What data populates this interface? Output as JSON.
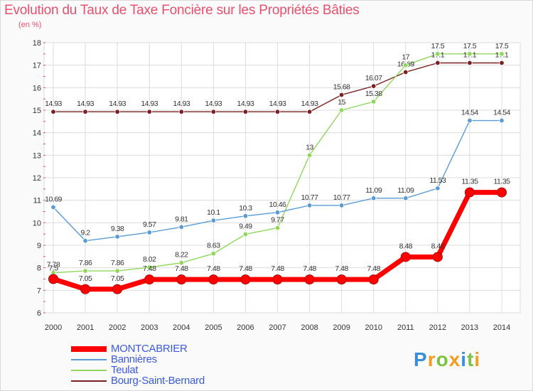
{
  "title": "Evolution du Taux de Taxe Foncière sur les Propriétés Bâties",
  "subtitle": "(en %)",
  "logo": {
    "letters": [
      "P",
      "r",
      "o",
      "x",
      "i",
      "t",
      "i"
    ],
    "colors": [
      "#3a8fd8",
      "#f39c1e",
      "#7cc242",
      "#f39c1e",
      "#3a8fd8",
      "#7cc242",
      "#f39c1e"
    ]
  },
  "chart_data": {
    "type": "line",
    "title": "Evolution du Taux de Taxe Foncière sur les Propriétés Bâties",
    "ylabel": "(en %)",
    "xlabel": "",
    "ylim": [
      6,
      18
    ],
    "yticks": [
      "6",
      "7",
      "8",
      "9",
      "10",
      "11",
      "12",
      "13",
      "14",
      "15",
      "16",
      "17",
      "18"
    ],
    "categories": [
      "2000",
      "2001",
      "2002",
      "2003",
      "2004",
      "2005",
      "2006",
      "2007",
      "2008",
      "2009",
      "2010",
      "2011",
      "2012",
      "2013",
      "2014"
    ],
    "series": [
      {
        "name": "Bourg-Saint-Bernard",
        "color": "#7b2020",
        "values": [
          14.93,
          14.93,
          14.93,
          14.93,
          14.93,
          14.93,
          14.93,
          14.93,
          14.93,
          15.68,
          16.07,
          16.69,
          17.1,
          17.1,
          17.1
        ],
        "labels": [
          "14.93",
          "14.93",
          "14.93",
          "14.93",
          "14.93",
          "14.93",
          "14.93",
          "14.93",
          "14.93",
          "15.68",
          "16.07",
          "16.69",
          "17.1",
          "17.1",
          "17.1"
        ]
      },
      {
        "name": "Teulat",
        "color": "#8fd85c",
        "values": [
          7.78,
          7.86,
          7.86,
          8.02,
          8.22,
          8.63,
          9.49,
          9.77,
          13,
          15,
          15.38,
          17,
          17.5,
          17.5,
          17.5
        ],
        "labels": [
          "7.78",
          "7.86",
          "7.86",
          "8.02",
          "8.22",
          "8.63",
          "9.49",
          "9.77",
          "13",
          "15",
          "15.38",
          "17",
          "17.5",
          "17.5",
          "17.5"
        ]
      },
      {
        "name": "Bannières",
        "color": "#5b9bd5",
        "values": [
          10.69,
          9.2,
          9.38,
          9.57,
          9.81,
          10.1,
          10.3,
          10.46,
          10.77,
          10.77,
          11.09,
          11.09,
          11.53,
          14.54,
          14.54
        ],
        "labels": [
          "10.69",
          "9.2",
          "9.38",
          "9.57",
          "9.81",
          "10.1",
          "10.3",
          "10.46",
          "10.77",
          "10.77",
          "11.09",
          "11.09",
          "11.53",
          "14.54",
          "14.54"
        ]
      },
      {
        "name": "MONTCABRIER",
        "color": "#ff0000",
        "values": [
          7.5,
          7.05,
          7.05,
          7.48,
          7.48,
          7.48,
          7.48,
          7.48,
          7.48,
          7.48,
          7.48,
          8.48,
          8.48,
          11.35,
          11.35
        ],
        "labels": [
          "7.5",
          "7.05",
          "7.05",
          "7.48",
          "7.48",
          "7.48",
          "7.48",
          "7.48",
          "7.48",
          "7.48",
          "7.48",
          "8.48",
          "8.48",
          "11.35",
          "11.35"
        ]
      }
    ],
    "legend": [
      {
        "name": "MONTCABRIER",
        "color": "#ff0000",
        "text_color": "#3b5bdb"
      },
      {
        "name": "Bannières",
        "color": "#5b9bd5",
        "text_color": "#3b5bdb"
      },
      {
        "name": "Teulat",
        "color": "#8fd85c",
        "text_color": "#3b5bdb"
      },
      {
        "name": "Bourg-Saint-Bernard",
        "color": "#7b2020",
        "text_color": "#3b5bdb"
      }
    ]
  }
}
